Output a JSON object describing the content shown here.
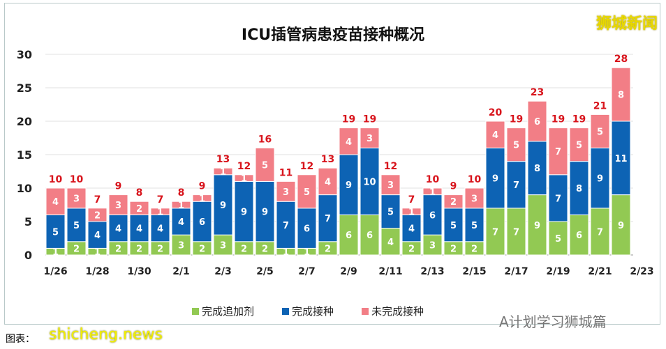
{
  "chart_data": {
    "type": "stacked-bar",
    "title": "ICU插管病患疫苗接种概况",
    "categories": [
      "1/26",
      "1/27",
      "1/28",
      "1/29",
      "1/30",
      "1/31",
      "2/1",
      "2/2",
      "2/3",
      "2/4",
      "2/5",
      "2/6",
      "2/7",
      "2/8",
      "2/9",
      "2/10",
      "2/11",
      "2/12",
      "2/13",
      "2/14",
      "2/15",
      "2/16",
      "2/17",
      "2/18",
      "2/19",
      "2/20",
      "2/21",
      "2/22"
    ],
    "x_tick_labels": [
      "1/26",
      "1/28",
      "1/30",
      "2/1",
      "2/3",
      "2/5",
      "2/7",
      "2/9",
      "2/11",
      "2/13",
      "2/15",
      "2/17",
      "2/19",
      "2/21",
      "2/23"
    ],
    "ylim": [
      0,
      30
    ],
    "y_ticks": [
      0,
      5,
      10,
      15,
      20,
      25,
      30
    ],
    "grid": true,
    "legend_position": "bottom",
    "series": [
      {
        "name": "完成追加剂",
        "color": "#92c953",
        "values": [
          1,
          2,
          1,
          2,
          2,
          2,
          3,
          2,
          3,
          2,
          2,
          1,
          1,
          2,
          6,
          6,
          4,
          2,
          3,
          2,
          2,
          7,
          7,
          9,
          5,
          6,
          7,
          9
        ]
      },
      {
        "name": "完成接种",
        "color": "#0d63b4",
        "values": [
          5,
          5,
          4,
          4,
          4,
          4,
          4,
          6,
          9,
          9,
          9,
          7,
          6,
          7,
          9,
          10,
          5,
          4,
          6,
          5,
          5,
          9,
          7,
          8,
          7,
          8,
          9,
          11
        ]
      },
      {
        "name": "未完成接种",
        "color": "#f27e86",
        "values": [
          4,
          3,
          2,
          3,
          2,
          1,
          1,
          1,
          1,
          1,
          5,
          3,
          5,
          4,
          4,
          3,
          3,
          1,
          1,
          2,
          3,
          4,
          5,
          6,
          7,
          5,
          5,
          8
        ]
      }
    ],
    "totals": [
      10,
      10,
      7,
      9,
      8,
      7,
      8,
      9,
      13,
      12,
      16,
      11,
      12,
      13,
      19,
      19,
      12,
      7,
      10,
      9,
      10,
      20,
      19,
      23,
      19,
      19,
      21,
      28
    ],
    "total_label_color": "#d8141c"
  },
  "watermarks": {
    "top_right": "狮城新闻",
    "bottom_left": "shicheng.news",
    "bottom_right": "A计划学习狮城篇"
  },
  "caption": "图表："
}
